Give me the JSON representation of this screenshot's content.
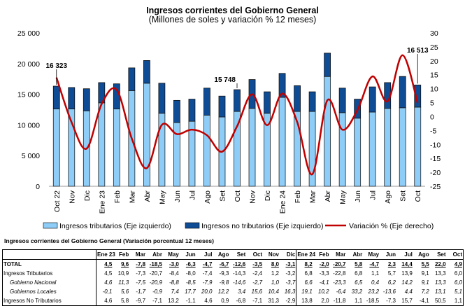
{
  "title": "Ingresos corrientes del Gobierno General",
  "subtitle": "(Millones de soles y variación % 12 meses)",
  "chart_data": {
    "type": "bar+line",
    "categories": [
      "Oct 22",
      "Nov",
      "Dic",
      "Ene 23",
      "Feb",
      "Mar",
      "Abr",
      "May",
      "Jun",
      "Jul",
      "Ago",
      "Set",
      "Oct",
      "Nov",
      "Dic",
      "Ene 24",
      "Feb",
      "Mar",
      "Abr",
      "May",
      "Jun",
      "Jul",
      "Ago",
      "Set",
      "Oct"
    ],
    "series": [
      {
        "name": "Ingresos tributarios (Eje izquierdo)",
        "type": "stacked-bar",
        "color": "#8ecdf7",
        "values": [
          12600,
          12600,
          12300,
          13600,
          12600,
          15600,
          16800,
          11900,
          10400,
          10600,
          11600,
          11300,
          12200,
          12700,
          11900,
          14500,
          12200,
          12200,
          17900,
          12000,
          11100,
          12100,
          12700,
          12800,
          12900
        ]
      },
      {
        "name": "Ingresos no tributarios (Eje izquierdo)",
        "type": "stacked-bar",
        "color": "#0f4c96",
        "values": [
          3723,
          3500,
          3600,
          3300,
          4100,
          3700,
          3700,
          4900,
          3600,
          3600,
          4400,
          3400,
          3548,
          4700,
          3500,
          3900,
          4200,
          3200,
          3800,
          4000,
          3100,
          4100,
          4200,
          5100,
          3613
        ]
      },
      {
        "name": "Variación % (Eje derecho)",
        "type": "line",
        "color": "#c00000",
        "values": [
          14,
          -2,
          -11.5,
          4.5,
          9.6,
          -7.8,
          -18.5,
          -3.0,
          -6.3,
          -4.7,
          -6.7,
          -12.6,
          -3.5,
          8.0,
          -3.1,
          8.2,
          -2.0,
          -20.7,
          5.8,
          -4.7,
          2.3,
          14.4,
          5.5,
          22.0,
          4.9
        ]
      }
    ],
    "annotations": [
      {
        "index": 0,
        "text": "16 323"
      },
      {
        "index": 12,
        "text": "15 748"
      },
      {
        "index": 24,
        "text": "16 513"
      }
    ],
    "yleft": {
      "lim": [
        0,
        25000
      ],
      "ticks": [
        "0",
        "5 000",
        "10 000",
        "15 000",
        "20 000",
        "25 000"
      ]
    },
    "yright": {
      "lim": [
        -25,
        30
      ],
      "ticks": [
        "-25",
        "-20",
        "-15",
        "-10",
        "-5",
        "0",
        "5",
        "10",
        "15",
        "20",
        "25",
        "30"
      ]
    },
    "legend": "bottom"
  },
  "table": {
    "title": "Ingresos corrientes del Gobierno General (Variación porcentual 12 meses)",
    "headers": [
      "",
      "Ene 23",
      "Feb",
      "Mar",
      "Abr",
      "May",
      "Jun",
      "Jul",
      "Ago",
      "Set",
      "Oct",
      "Nov",
      "Dic",
      "Ene 24",
      "Feb",
      "Mar",
      "Abr",
      "May",
      "Jun",
      "Jul",
      "Ago",
      "Set",
      "Oct"
    ],
    "rows": [
      {
        "style": "bold",
        "cells": [
          "TOTAL",
          "4,5",
          "9,6",
          "-7,8",
          "-18,5",
          "-3,0",
          "-6,3",
          "-4,7",
          "-6,7",
          "-12,6",
          "-3,5",
          "8,0",
          "-3,1",
          "8,2",
          "-2,0",
          "-20,7",
          "5,8",
          "-4,7",
          "2,3",
          "14,4",
          "5,5",
          "22,0",
          "4,9"
        ]
      },
      {
        "style": "",
        "cells": [
          "Ingresos Tributarios",
          "4,5",
          "10,9",
          "-7,3",
          "-20,7",
          "-8,4",
          "-8,0",
          "-7,4",
          "-9,3",
          "-14,3",
          "-2,4",
          "1,2",
          "-3,2",
          "6,8",
          "-3,3",
          "-22,8",
          "6,8",
          "1,1",
          "5,7",
          "13,9",
          "9,1",
          "13,3",
          "6,0"
        ]
      },
      {
        "style": "it",
        "cells": [
          "Gobierno Nacional",
          "4,6",
          "11,3",
          "-7,5",
          "-20,9",
          "-8,8",
          "-8,5",
          "-7,9",
          "-9,8",
          "-14,6",
          "-2,7",
          "1,0",
          "-3,7",
          "6,6",
          "-4,1",
          "-23,3",
          "6,5",
          "0,4",
          "6,2",
          "14,2",
          "9,1",
          "13,3",
          "6,0"
        ]
      },
      {
        "style": "it",
        "cells": [
          "Gobiernos Locales",
          "-0,1",
          "5,6",
          "-1,7",
          "-0,9",
          "7,4",
          "17,7",
          "20,0",
          "12,2",
          "3,4",
          "15,6",
          "10,4",
          "16,3",
          "19,1",
          "10,2",
          "-6,4",
          "33,2",
          "23,2",
          "-13,6",
          "4,4",
          "7,2",
          "13,1",
          "5,1"
        ]
      },
      {
        "style": "",
        "cells": [
          "Ingresos No Tributarios",
          "4,6",
          "5,8",
          "-9,7",
          "-7,1",
          "13,2",
          "-1,1",
          "4,6",
          "0,9",
          "-6,8",
          "-7,1",
          "31,3",
          "-2,9",
          "13,8",
          "2,0",
          "-11,8",
          "1,1",
          "-18,5",
          "-7,3",
          "15,7",
          "-4,1",
          "50,5",
          "1,1"
        ]
      }
    ]
  }
}
